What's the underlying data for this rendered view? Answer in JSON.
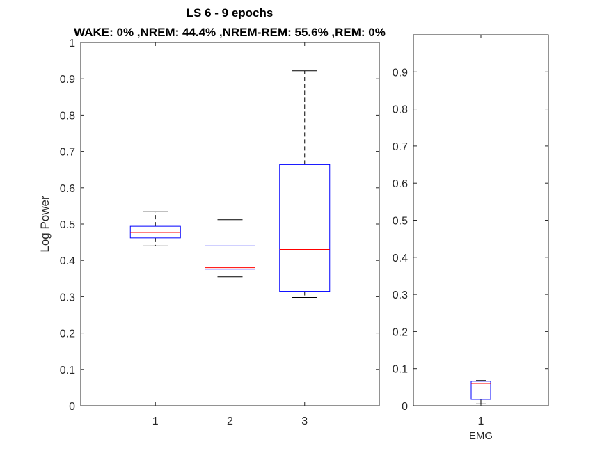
{
  "chart_data": [
    {
      "type": "box",
      "title": "LS 6 - 9 epochs",
      "subtitle": "WAKE: 0% ,NREM: 44.4% ,NREM-REM: 55.6% ,REM: 0%",
      "xlabel": "",
      "ylabel": "Log Power",
      "categories": [
        "1",
        "2",
        "3"
      ],
      "ylim": [
        0,
        1
      ],
      "yticks": [
        "0",
        "0.1",
        "0.2",
        "0.3",
        "0.4",
        "0.5",
        "0.6",
        "0.7",
        "0.8",
        "0.9",
        "1"
      ],
      "grid": false,
      "boxes": [
        {
          "category": "1",
          "whisker_low": 0.44,
          "q1": 0.462,
          "median": 0.477,
          "q3": 0.494,
          "whisker_high": 0.534
        },
        {
          "category": "2",
          "whisker_low": 0.355,
          "q1": 0.376,
          "median": 0.38,
          "q3": 0.44,
          "whisker_high": 0.512
        },
        {
          "category": "3",
          "whisker_low": 0.298,
          "q1": 0.315,
          "median": 0.43,
          "q3": 0.664,
          "whisker_high": 0.922
        }
      ],
      "colors": {
        "box": "#0000ff",
        "median": "#ff0000",
        "whisker": "#000000"
      }
    },
    {
      "type": "box",
      "title": "",
      "xlabel": "EMG",
      "ylabel": "",
      "categories": [
        "1"
      ],
      "ylim": [
        0,
        1
      ],
      "yticks": [
        "0",
        "0.1",
        "0.2",
        "0.3",
        "0.4",
        "0.5",
        "0.6",
        "0.7",
        "0.8",
        "0.9"
      ],
      "grid": false,
      "boxes": [
        {
          "category": "1",
          "whisker_low": 0.005,
          "q1": 0.017,
          "median": 0.06,
          "q3": 0.066,
          "whisker_high": 0.068
        }
      ],
      "colors": {
        "box": "#0000ff",
        "median": "#ff0000",
        "whisker": "#000000"
      }
    }
  ]
}
